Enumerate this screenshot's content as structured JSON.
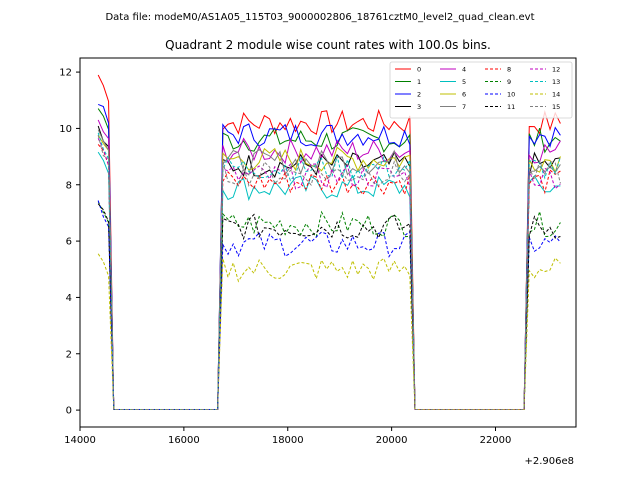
{
  "chart_data": {
    "type": "line",
    "suptitle": "Data file: modeM0/AS1A05_115T03_9000002806_18761cztM0_level2_quad_clean.evt",
    "title": "Quadrant 2 module wise count rates with 100.0s bins.",
    "xlabel": "",
    "ylabel": "",
    "x_offset_label": "+2.906e8",
    "xlim": [
      14000,
      23550
    ],
    "ylim": [
      -0.6,
      12.5
    ],
    "xticks": [
      14000,
      16000,
      18000,
      20000,
      22000
    ],
    "yticks": [
      0,
      2,
      4,
      6,
      8,
      10,
      12
    ],
    "x_tick_labels": [
      "14000",
      "16000",
      "18000",
      "20000",
      "22000"
    ],
    "y_tick_labels": [
      "0",
      "2",
      "4",
      "6",
      "8",
      "10",
      "12"
    ],
    "legend_position": "top-right",
    "segments": [
      {
        "t_start": 14350,
        "t_end": 14550
      },
      {
        "t_start": 16750,
        "t_end": 20350
      },
      {
        "t_start": 22650,
        "t_end": 23250
      }
    ],
    "gap_rate": 0.02,
    "series": [
      {
        "name": "0",
        "color": "#ff0000",
        "dash": "solid",
        "level": 10.2,
        "start_level": 11.9
      },
      {
        "name": "1",
        "color": "#008000",
        "dash": "solid",
        "level": 9.6,
        "start_level": 10.8
      },
      {
        "name": "2",
        "color": "#0000ff",
        "dash": "solid",
        "level": 9.8,
        "start_level": 11.0
      },
      {
        "name": "3",
        "color": "#000000",
        "dash": "solid",
        "level": 8.7,
        "start_level": 10.0
      },
      {
        "name": "4",
        "color": "#bf00bf",
        "dash": "solid",
        "level": 9.2,
        "start_level": 10.3
      },
      {
        "name": "5",
        "color": "#00bfbf",
        "dash": "solid",
        "level": 7.9,
        "start_level": 9.3
      },
      {
        "name": "6",
        "color": "#bfbf00",
        "dash": "solid",
        "level": 8.9,
        "start_level": 9.9
      },
      {
        "name": "7",
        "color": "#808080",
        "dash": "solid",
        "level": 8.8,
        "start_level": 10.1
      },
      {
        "name": "8",
        "color": "#ff0000",
        "dash": "dashed",
        "level": 8.1,
        "start_level": 9.5
      },
      {
        "name": "9",
        "color": "#008000",
        "dash": "dashed",
        "level": 6.6,
        "start_level": 7.5
      },
      {
        "name": "10",
        "color": "#0000ff",
        "dash": "dashed",
        "level": 5.9,
        "start_level": 7.4
      },
      {
        "name": "11",
        "color": "#000000",
        "dash": "dashed",
        "level": 6.5,
        "start_level": 7.4
      },
      {
        "name": "12",
        "color": "#bf00bf",
        "dash": "dashed",
        "level": 8.3,
        "start_level": 9.6
      },
      {
        "name": "13",
        "color": "#00bfbf",
        "dash": "dashed",
        "level": 8.6,
        "start_level": 9.8
      },
      {
        "name": "14",
        "color": "#bfbf00",
        "dash": "dashed",
        "level": 5.0,
        "start_level": 5.5
      },
      {
        "name": "15",
        "color": "#808080",
        "dash": "dashed",
        "level": 8.4,
        "start_level": 9.6
      }
    ]
  }
}
